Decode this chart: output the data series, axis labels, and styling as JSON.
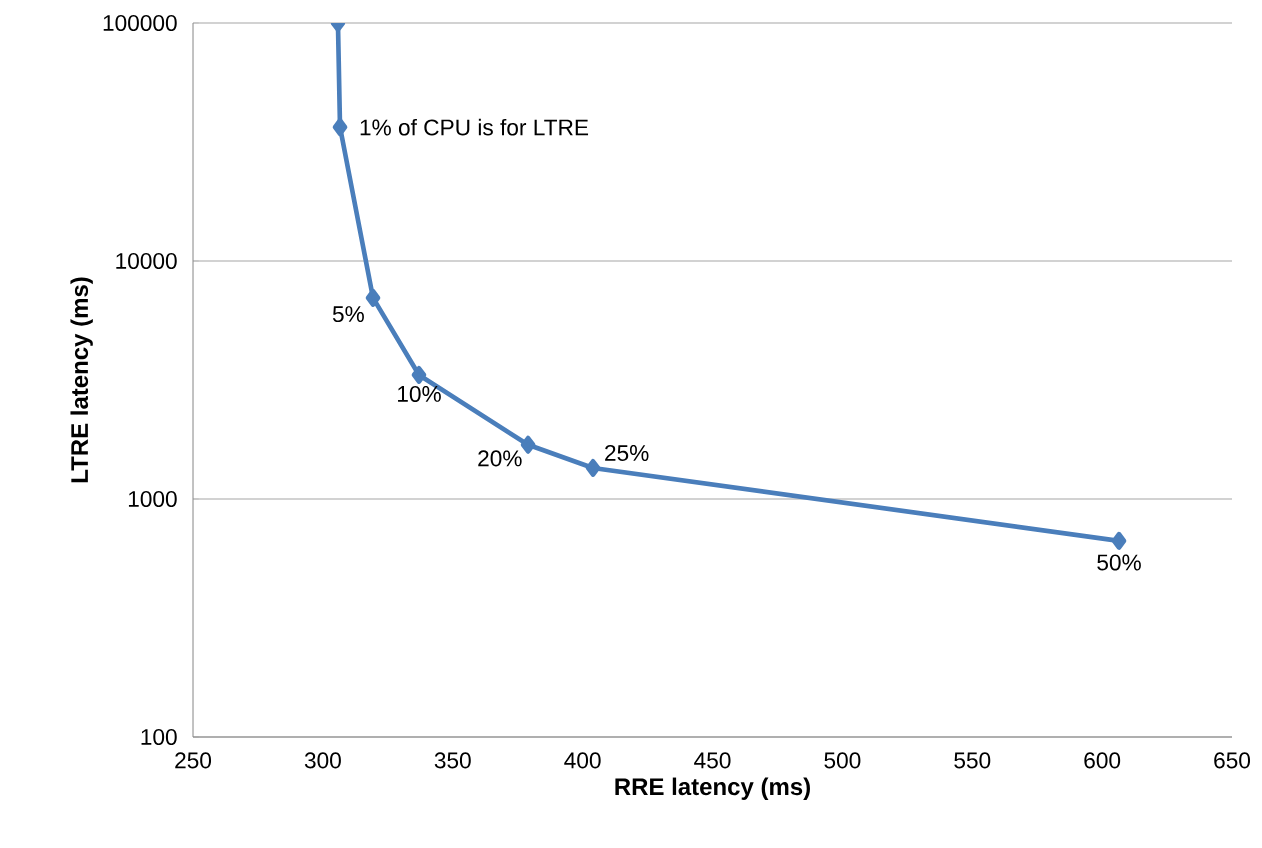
{
  "chart_data": {
    "type": "line",
    "xlabel": "RRE latency (ms)",
    "ylabel": "LTRE latency (ms)",
    "series": [
      {
        "color": "#4a7ebb",
        "x": [
          305.8,
          306.6,
          319.3,
          337,
          379,
          404,
          606.5
        ],
        "values": [
          100000,
          36500,
          7000,
          3320,
          1690,
          1350,
          667
        ]
      }
    ],
    "xlim": [
      250,
      650
    ],
    "xticks": [
      250,
      300,
      350,
      400,
      450,
      500,
      550,
      600,
      650
    ],
    "ylim": [
      100,
      100000
    ],
    "yticks": [
      100,
      1000,
      10000,
      100000
    ],
    "log": "y",
    "grid": "y",
    "marker": "diamond",
    "line_style": "solid",
    "annotations": [
      {
        "text": "1% of CPU is for LTRE",
        "x": 306.6,
        "y": 36500
      },
      {
        "text": "5%",
        "x": 319.3,
        "y": 7000
      },
      {
        "text": "10%",
        "x": 337,
        "y": 3320
      },
      {
        "text": "20%",
        "x": 379,
        "y": 1690
      },
      {
        "text": "25%",
        "x": 404,
        "y": 1350
      },
      {
        "text": "50%",
        "x": 606.5,
        "y": 667
      }
    ]
  }
}
